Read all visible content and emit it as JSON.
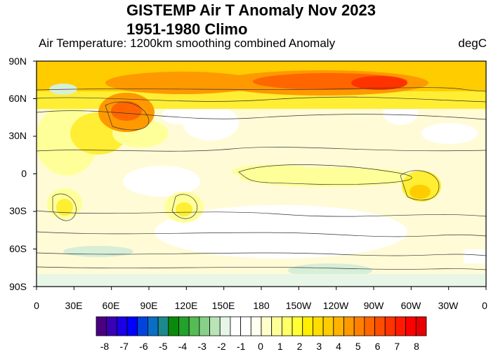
{
  "header": {
    "title_line1": "GISTEMP Air T Anomaly Nov 2023",
    "title_line2": "1951-1980 Climo",
    "subtitle": "Air Temperature: 1200km smoothing combined Anomaly",
    "unit": "degC"
  },
  "axes": {
    "lat_labels": [
      "90N",
      "60N",
      "30N",
      "0",
      "30S",
      "60S",
      "90S"
    ],
    "lon_labels": [
      "0",
      "30E",
      "60E",
      "90E",
      "120E",
      "150E",
      "180",
      "150W",
      "120W",
      "90W",
      "60W",
      "30W",
      "0"
    ]
  },
  "colorbar": {
    "labels": [
      "-8",
      "-7",
      "-6",
      "-5",
      "-4",
      "-3",
      "-2",
      "-1",
      "0",
      "1",
      "2",
      "3",
      "4",
      "5",
      "6",
      "7",
      "8"
    ],
    "colors": [
      "#4b0082",
      "#3a00b4",
      "#1a00e6",
      "#0000ff",
      "#0044dd",
      "#0a6ec4",
      "#1a8a8a",
      "#0a8a0a",
      "#22a22a",
      "#55bb55",
      "#88d088",
      "#b8e4b8",
      "#e6f5e6",
      "#ffffff",
      "#ffffff",
      "#fffff0",
      "#ffffcc",
      "#ffff99",
      "#ffff66",
      "#ffff33",
      "#ffee00",
      "#ffdd00",
      "#ffcc00",
      "#ffb300",
      "#ff9900",
      "#ff8000",
      "#ff6600",
      "#ff4d00",
      "#ff3300",
      "#ff1a00",
      "#ff0000",
      "#e60000"
    ]
  },
  "map": {
    "colors": {
      "ocean_base": "#ffffff",
      "weak_warm": "#fffbd6",
      "mild_warm": "#ffff99",
      "warm": "#ffee33",
      "hot": "#ffcc00",
      "orange": "#ff9900",
      "red_orange": "#ff6600",
      "red": "#ff3300",
      "cool": "#d7eed7",
      "cool_mid": "#aedcae",
      "polar_band": "#ffcc00",
      "south_band": "#e8f6e8",
      "missing": "#ffffff"
    }
  }
}
